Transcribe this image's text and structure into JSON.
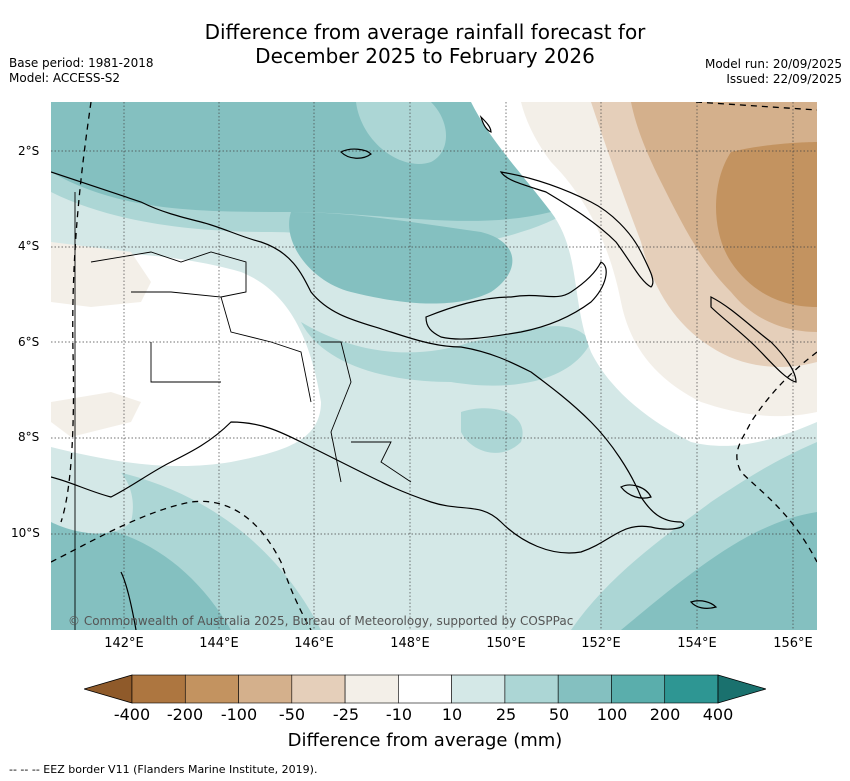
{
  "title_line1": "Difference from average rainfall forecast for",
  "title_line2": "December 2025 to February 2026",
  "base_period": "Base period: 1981-2018",
  "model": "Model: ACCESS-S2",
  "model_run": "Model run: 20/09/2025",
  "issued": "Issued: 22/09/2025",
  "lat_labels": [
    "2°S",
    "4°S",
    "6°S",
    "8°S",
    "10°S"
  ],
  "lon_labels": [
    "142°E",
    "144°E",
    "146°E",
    "148°E",
    "150°E",
    "152°E",
    "154°E",
    "156°E"
  ],
  "copyright": "© Commonwealth of Australia 2025, Bureau of Meteorology, supported by COSPPac",
  "colorbar": {
    "label": "Difference from average (mm)",
    "ticks": [
      "-400",
      "-200",
      "-100",
      "-50",
      "-25",
      "-10",
      "10",
      "25",
      "50",
      "100",
      "200",
      "400"
    ],
    "colors": {
      "below_min": "#8f5a2a",
      "b1": "#ad7640",
      "b2": "#c39360",
      "b3": "#d4b08c",
      "b4": "#e5cfba",
      "b5": "#f3efe8",
      "b6": "#ffffff",
      "b7": "#d4e8e7",
      "b8": "#acd6d5",
      "b9": "#84c0c0",
      "b10": "#5aaeac",
      "b11": "#2e9693",
      "above_max": "#1a716e"
    }
  },
  "eez_note": "--  --  -- EEZ border V11 (Flanders Marine Institute, 2019)."
}
